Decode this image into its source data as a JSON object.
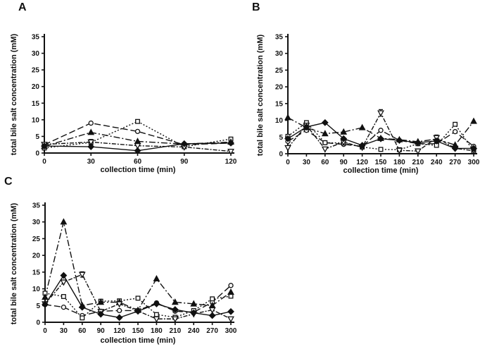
{
  "figure": {
    "background": "#ffffff",
    "ink": "#111111"
  },
  "series_styles": [
    {
      "name": "circle",
      "marker": "circle",
      "fill": "open",
      "dash": "9,4"
    },
    {
      "name": "square",
      "marker": "square",
      "fill": "open",
      "dash": "2,2.5"
    },
    {
      "name": "triangle",
      "marker": "triangle-up",
      "fill": "filled",
      "dash": "9,3,2,3"
    },
    {
      "name": "inverted-triangle",
      "marker": "triangle-down",
      "fill": "open",
      "dash": "6,2,2,2"
    },
    {
      "name": "diamond",
      "marker": "diamond",
      "fill": "filled",
      "dash": ""
    }
  ],
  "chart_data": [
    {
      "type": "line",
      "panel_label": "A",
      "xlabel": "collection time (min)",
      "ylabel": "total bile salt concentration (mM)",
      "x": [
        0,
        30,
        60,
        90,
        120
      ],
      "xlim": [
        0,
        120
      ],
      "ylim": [
        0,
        35
      ],
      "yticks": [
        0,
        5,
        10,
        15,
        20,
        25,
        30,
        35
      ],
      "grid": false,
      "legend": "none",
      "series": [
        {
          "name": "circle",
          "values": [
            2.5,
            9.0,
            6.5,
            2.5,
            3.0
          ]
        },
        {
          "name": "square",
          "values": [
            1.5,
            3.2,
            9.5,
            1.9,
            4.2
          ]
        },
        {
          "name": "triangle",
          "values": [
            2.0,
            6.2,
            3.5,
            2.7,
            3.3
          ]
        },
        {
          "name": "inverted-triangle",
          "values": [
            2.6,
            3.3,
            2.2,
            1.8,
            0.5
          ]
        },
        {
          "name": "diamond",
          "values": [
            2.1,
            1.9,
            0.7,
            2.8,
            3.0
          ]
        }
      ],
      "error_bars": [
        {
          "series": "inverted-triangle",
          "x": 30,
          "minus": 0.8,
          "plus": 0.8
        }
      ]
    },
    {
      "type": "line",
      "panel_label": "B",
      "xlabel": "collection time (min)",
      "ylabel": "total bile salt concentration (mM)",
      "x": [
        0,
        30,
        60,
        90,
        120,
        150,
        180,
        210,
        240,
        270,
        300
      ],
      "xlim": [
        0,
        300
      ],
      "ylim": [
        0,
        35
      ],
      "yticks": [
        0,
        5,
        10,
        15,
        20,
        25,
        30,
        35
      ],
      "grid": false,
      "legend": "none",
      "series": [
        {
          "name": "circle",
          "values": [
            3.7,
            7.0,
            3.3,
            2.8,
            2.2,
            7.0,
            4.0,
            3.0,
            3.0,
            6.6,
            2.2
          ]
        },
        {
          "name": "square",
          "values": [
            5.2,
            9.3,
            3.3,
            3.2,
            2.0,
            1.3,
            1.2,
            3.0,
            2.5,
            8.8,
            0.7
          ]
        },
        {
          "name": "triangle",
          "values": [
            10.8,
            7.8,
            6.0,
            6.5,
            7.8,
            4.6,
            4.2,
            3.6,
            4.4,
            2.6,
            9.7
          ]
        },
        {
          "name": "inverted-triangle",
          "values": [
            1.8,
            8.5,
            1.4,
            3.5,
            1.9,
            12.2,
            1.0,
            0.8,
            4.8,
            1.6,
            0.9
          ]
        },
        {
          "name": "diamond",
          "values": [
            4.5,
            8.0,
            9.3,
            4.5,
            2.5,
            4.5,
            4.0,
            3.3,
            3.8,
            1.6,
            1.6
          ]
        }
      ],
      "error_bars": [
        {
          "series": "inverted-triangle",
          "x": 150,
          "minus": 1.0,
          "plus": 1.0
        },
        {
          "series": "inverted-triangle",
          "x": 240,
          "minus": 0.8,
          "plus": 0.8
        }
      ]
    },
    {
      "type": "line",
      "panel_label": "C",
      "xlabel": "collection time (min)",
      "ylabel": "total bile salt concentration (mM)",
      "x": [
        0,
        30,
        60,
        90,
        120,
        150,
        180,
        210,
        240,
        270,
        300
      ],
      "xlim": [
        0,
        300
      ],
      "ylim": [
        0,
        35
      ],
      "yticks": [
        0,
        5,
        10,
        15,
        20,
        25,
        30,
        35
      ],
      "grid": false,
      "legend": "none",
      "series": [
        {
          "name": "circle",
          "values": [
            5.3,
            4.5,
            2.0,
            3.3,
            3.5,
            3.5,
            5.8,
            3.3,
            3.0,
            6.0,
            11.0
          ]
        },
        {
          "name": "square",
          "values": [
            8.7,
            7.7,
            1.3,
            6.3,
            6.4,
            7.2,
            2.3,
            1.5,
            3.5,
            7.0,
            7.8
          ]
        },
        {
          "name": "triangle",
          "values": [
            7.5,
            30.0,
            5.0,
            6.0,
            6.0,
            3.6,
            13.0,
            6.0,
            5.5,
            5.0,
            9.0
          ]
        },
        {
          "name": "inverted-triangle",
          "values": [
            5.5,
            12.0,
            14.3,
            3.2,
            5.5,
            3.4,
            1.0,
            1.0,
            2.5,
            3.7,
            1.0
          ]
        },
        {
          "name": "diamond",
          "values": [
            5.3,
            14.0,
            4.5,
            2.4,
            1.4,
            3.3,
            5.5,
            3.8,
            2.8,
            2.0,
            3.2
          ]
        }
      ],
      "error_bars": [
        {
          "series": "inverted-triangle",
          "x": 60,
          "minus": 0.8,
          "plus": 0.8
        }
      ]
    }
  ]
}
